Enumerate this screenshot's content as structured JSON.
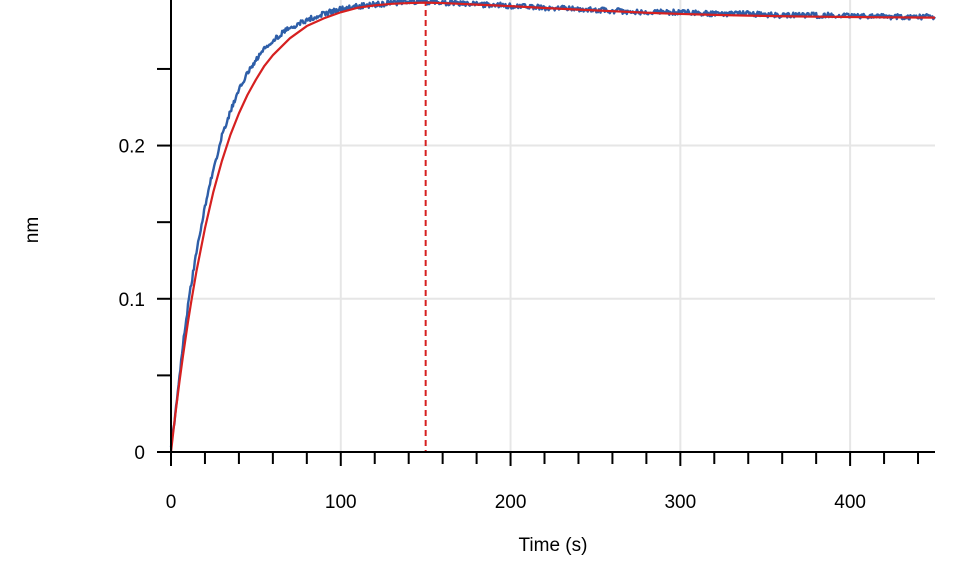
{
  "chart_data": {
    "type": "line",
    "title": "",
    "xlabel": "Time (s)",
    "ylabel": "nm",
    "xlim": [
      0,
      450
    ],
    "ylim": [
      0,
      0.295
    ],
    "x_ticks": [
      0,
      100,
      200,
      300,
      400
    ],
    "x_tick_labels": [
      "0",
      "100",
      "200",
      "300",
      "400"
    ],
    "x_minor_step": 20,
    "y_ticks": [
      0,
      0.1,
      0.2
    ],
    "y_tick_labels": [
      "0",
      "0.1",
      "0.2"
    ],
    "y_minor_step": 0.05,
    "grid": true,
    "vertical_markers": [
      0,
      150
    ],
    "series": [
      {
        "kind": "measured",
        "x": [
          0,
          1,
          2,
          3,
          5,
          7,
          10,
          12,
          15,
          20,
          25,
          30,
          35,
          40,
          45,
          50,
          55,
          60,
          70,
          80,
          90,
          100,
          110,
          120,
          130,
          140,
          150,
          160,
          170,
          180,
          190,
          200,
          220,
          240,
          260,
          280,
          300,
          320,
          340,
          360,
          380,
          400,
          420,
          440,
          450
        ],
        "y": [
          0.005,
          0.011,
          0.02,
          0.03,
          0.05,
          0.07,
          0.095,
          0.11,
          0.13,
          0.16,
          0.185,
          0.206,
          0.222,
          0.236,
          0.247,
          0.256,
          0.263,
          0.269,
          0.277,
          0.282,
          0.286,
          0.289,
          0.291,
          0.292,
          0.293,
          0.294,
          0.294,
          0.293,
          0.293,
          0.292,
          0.292,
          0.291,
          0.29,
          0.289,
          0.288,
          0.287,
          0.287,
          0.286,
          0.286,
          0.285,
          0.285,
          0.285,
          0.284,
          0.284,
          0.284
        ],
        "color": "#2e5ea8"
      },
      {
        "kind": "fit",
        "x": [
          0,
          1,
          2,
          3,
          5,
          7,
          10,
          12,
          15,
          20,
          25,
          30,
          35,
          40,
          45,
          50,
          55,
          60,
          70,
          80,
          90,
          100,
          110,
          120,
          130,
          140,
          150,
          160,
          170,
          180,
          190,
          200,
          220,
          240,
          260,
          280,
          300,
          320,
          340,
          360,
          380,
          400,
          420,
          440,
          450
        ],
        "y": [
          0.0,
          0.0098,
          0.0193,
          0.0285,
          0.046,
          0.0623,
          0.0849,
          0.0987,
          0.118,
          0.146,
          0.17,
          0.19,
          0.207,
          0.221,
          0.233,
          0.243,
          0.252,
          0.259,
          0.27,
          0.278,
          0.283,
          0.287,
          0.29,
          0.2915,
          0.2925,
          0.293,
          0.2933,
          0.293,
          0.2925,
          0.292,
          0.2915,
          0.291,
          0.2898,
          0.2887,
          0.2877,
          0.2867,
          0.2859,
          0.2853,
          0.2848,
          0.2844,
          0.2841,
          0.2839,
          0.2837,
          0.2836,
          0.2835
        ],
        "color": "#d62020"
      }
    ],
    "colors": {
      "grid": "#e6e6e6",
      "axis": "#000000",
      "measured": "#2e5ea8",
      "fit": "#d62020",
      "marker": "#d62020"
    }
  }
}
